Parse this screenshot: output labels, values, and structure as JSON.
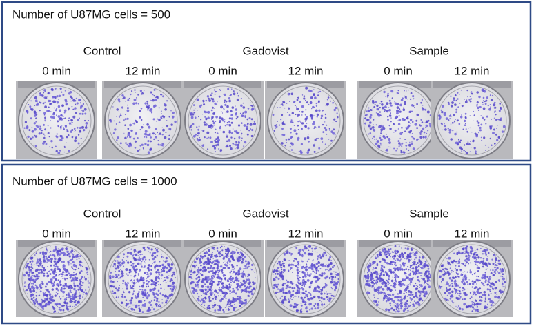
{
  "panels": [
    {
      "title": "Number of U87MG cells = 500",
      "groups": [
        {
          "label": "Control",
          "times": [
            "0 min",
            "12 min"
          ]
        },
        {
          "label": "Gadovist",
          "times": [
            "0 min",
            "12 min"
          ]
        },
        {
          "label": "Sample",
          "times": [
            "0 min",
            "12 min"
          ]
        }
      ]
    },
    {
      "title": "Number of U87MG cells = 1000",
      "groups": [
        {
          "label": "Control",
          "times": [
            "0 min",
            "12 min"
          ]
        },
        {
          "label": "Gadovist",
          "times": [
            "0 min",
            "12 min"
          ]
        },
        {
          "label": "Sample",
          "times": [
            "0 min",
            "12 min"
          ]
        }
      ]
    }
  ]
}
